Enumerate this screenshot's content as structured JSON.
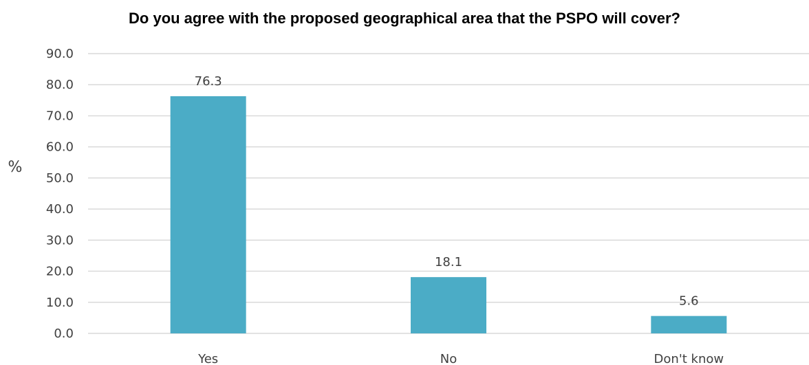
{
  "chart_data": {
    "type": "bar",
    "title": "Do you agree with the proposed geographical area that the PSPO will cover?",
    "ylabel": "%",
    "xlabel": "",
    "categories": [
      "Yes",
      "No",
      "Don't know"
    ],
    "values": [
      76.3,
      18.1,
      5.6
    ],
    "value_labels": [
      "76.3",
      "18.1",
      "5.6"
    ],
    "ylim": [
      0,
      90
    ],
    "yticks": [
      "0.0",
      "10.0",
      "20.0",
      "30.0",
      "40.0",
      "50.0",
      "60.0",
      "70.0",
      "80.0",
      "90.0"
    ],
    "grid": true,
    "legend": "none",
    "colors": {
      "bar": "#4BACC6",
      "grid": "#D9D9D9",
      "text": "#404040"
    }
  }
}
